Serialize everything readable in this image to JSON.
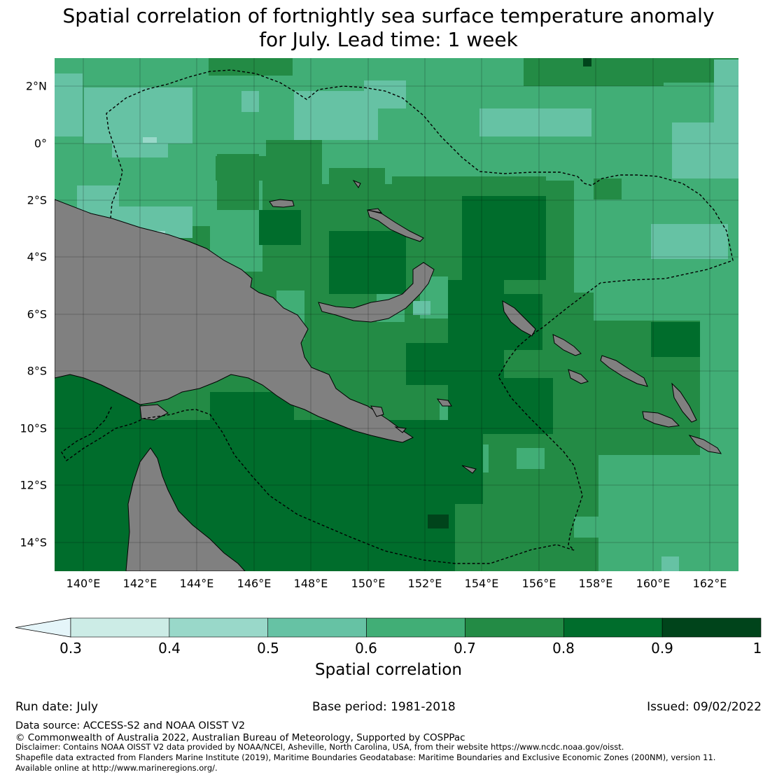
{
  "title": {
    "line1": "Spatial correlation of fortnightly sea surface temperature anomaly",
    "line2": "for July. Lead time: 1 week"
  },
  "map": {
    "lat_labels": [
      "2°N",
      "0°",
      "2°S",
      "4°S",
      "6°S",
      "8°S",
      "10°S",
      "12°S",
      "14°S"
    ],
    "lon_labels": [
      "140°E",
      "142°E",
      "144°E",
      "146°E",
      "148°E",
      "150°E",
      "152°E",
      "154°E",
      "156°E",
      "158°E",
      "160°E",
      "162°E"
    ],
    "extent": {
      "lon_min": 139,
      "lon_max": 163,
      "lat_min": -15,
      "lat_max": 3
    },
    "land_color": "#808080",
    "boundary_style": "dashed black"
  },
  "colorbar": {
    "title": "Spatial correlation",
    "tick_labels": [
      "0.3",
      "0.4",
      "0.5",
      "0.6",
      "0.7",
      "0.8",
      "0.9",
      "1"
    ],
    "levels": [
      0.3,
      0.4,
      0.5,
      0.6,
      0.7,
      0.8,
      0.9,
      1.0
    ],
    "colors": [
      "#e5f5f9",
      "#ccece6",
      "#99d8c9",
      "#66c2a4",
      "#41ae76",
      "#238b45",
      "#006d2c",
      "#00441b"
    ],
    "extend": "min"
  },
  "footer": {
    "run_date": "Run date: July",
    "base_period": "Base period: 1981-2018",
    "issued": "Issued: 09/02/2022",
    "data_source": "Data source: ACCESS-S2 and NOAA OISST V2",
    "copyright": "© Commonwealth of Australia 2022, Australian Bureau of Meteorology, Supported by COSPPac",
    "disclaimer_1": "Disclaimer: Contains NOAA OISST V2 data provided by NOAA/NCEI, Asheville, North Carolina, USA, from their website https://www.ncdc.noaa.gov/oisst.",
    "disclaimer_2": "Shapefile data extracted from Flanders Marine Institute (2019), Maritime Boundaries Geodatabase: Maritime Boundaries and Exclusive Economic Zones (200NM), version 11.",
    "disclaimer_3": "Available online at http://www.marineregions.org/."
  }
}
